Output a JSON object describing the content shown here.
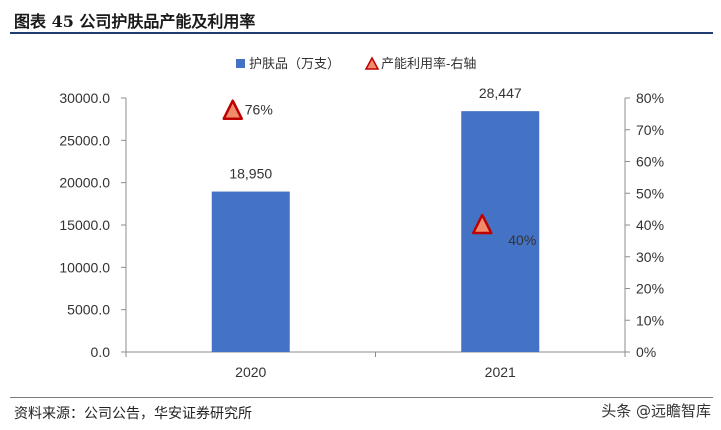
{
  "title": "图表 45 公司护肤品产能及利用率",
  "source": "资料来源：公司公告，华安证券研究所",
  "watermark": "头条 @远瞻智库",
  "colors": {
    "bar": "#4472c4",
    "triangle_fill": "#f08c6c",
    "triangle_stroke": "#c00000",
    "rule": "#1f3b72"
  },
  "chart_data": {
    "type": "bar",
    "categories": [
      "2020",
      "2021"
    ],
    "series": [
      {
        "name": "护肤品（万支）",
        "type": "bar",
        "axis": "left",
        "values": [
          18950,
          28447
        ],
        "labels": [
          "18,950",
          "28,447"
        ]
      },
      {
        "name": "产能利用率-右轴",
        "type": "scatter",
        "marker": "triangle",
        "axis": "right",
        "values": [
          0.76,
          0.4
        ],
        "labels": [
          "76%",
          "40%"
        ]
      }
    ],
    "y_left": {
      "min": 0,
      "max": 30000,
      "step": 5000,
      "ticks": [
        "0.0",
        "5000.0",
        "10000.0",
        "15000.0",
        "20000.0",
        "25000.0",
        "30000.0"
      ]
    },
    "y_right": {
      "min": 0,
      "max": 0.8,
      "step": 0.1,
      "ticks": [
        "0%",
        "10%",
        "20%",
        "30%",
        "40%",
        "50%",
        "60%",
        "70%",
        "80%"
      ]
    },
    "legend_position": "top-center",
    "grid": false
  }
}
